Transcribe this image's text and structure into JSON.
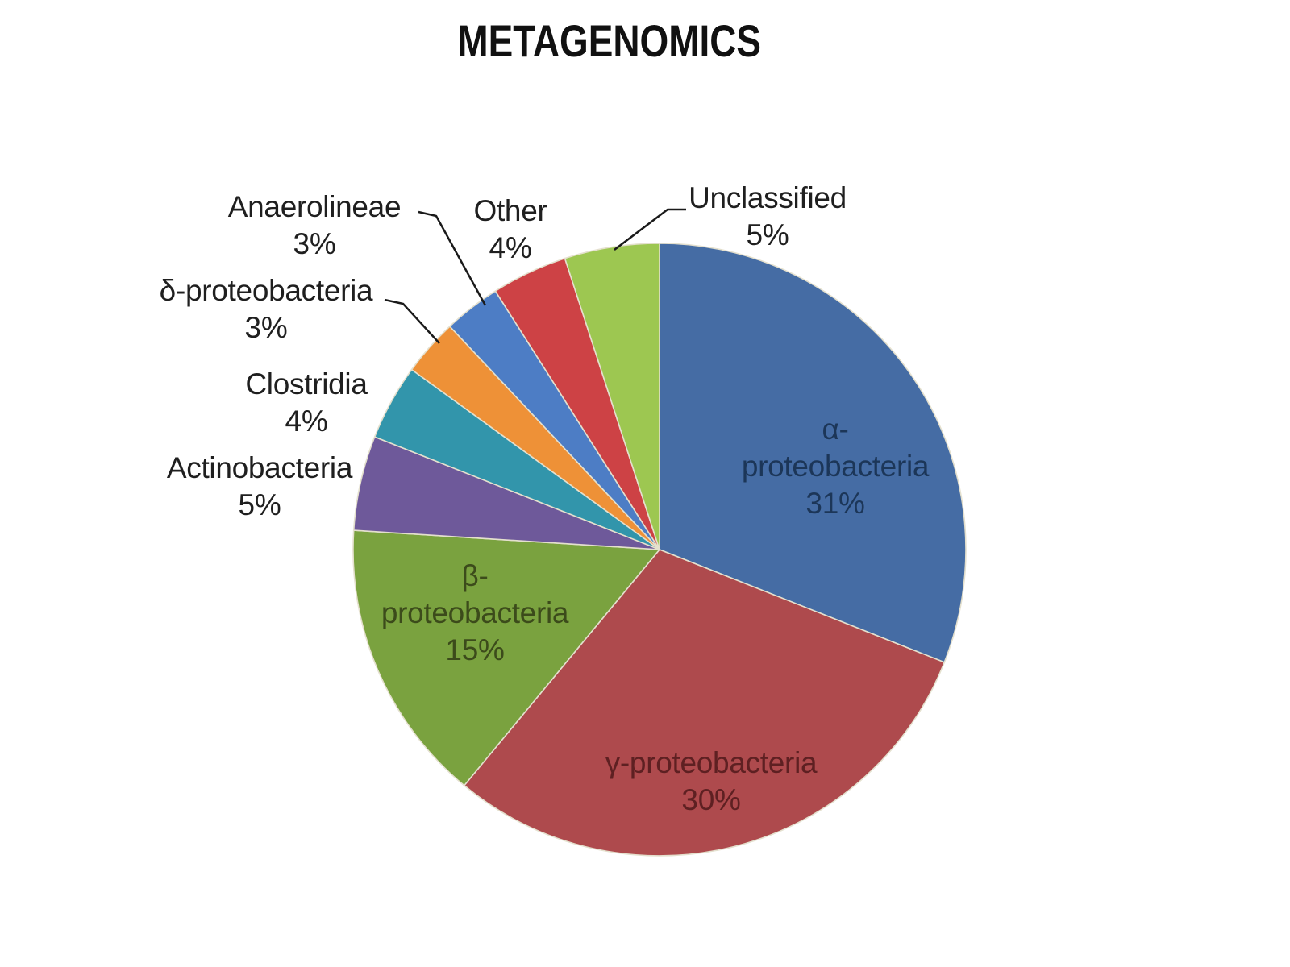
{
  "title": "METAGENOMICS",
  "chart_data": {
    "type": "pie",
    "title": "METAGENOMICS",
    "unit": "%",
    "total": 100,
    "legend": false,
    "background_color": "#FFFFFF",
    "title_color": "#111111",
    "outside_label_color": "#1F1F1F",
    "leader_line_color": "#1A1A1A",
    "slice_border_color": "#E4E0CE",
    "start_angle_deg": 0,
    "direction": "clockwise",
    "slices": [
      {
        "id": "alpha-proteobacteria",
        "name": "α-proteobacteria",
        "value": 31,
        "pct_label": "31%",
        "color": "#456CA4",
        "label_placement": "inside",
        "label_color": "#1C3658",
        "lines": [
          "α-",
          "proteobacteria",
          "31%"
        ]
      },
      {
        "id": "gamma-proteobacteria",
        "name": "γ-proteobacteria",
        "value": 30,
        "pct_label": "30%",
        "color": "#AE4A4D",
        "label_placement": "inside",
        "label_color": "#5E2022",
        "lines": [
          "γ-proteobacteria",
          "30%"
        ]
      },
      {
        "id": "beta-proteobacteria",
        "name": "β-proteobacteria",
        "value": 15,
        "pct_label": "15%",
        "color": "#7AA23F",
        "label_placement": "inside",
        "label_color": "#3C4B1B",
        "lines": [
          "β-",
          "proteobacteria",
          "15%"
        ]
      },
      {
        "id": "actinobacteria",
        "name": "Actinobacteria",
        "value": 5,
        "pct_label": "5%",
        "color": "#6E599A",
        "label_placement": "outside",
        "label_color": "#1F1F1F",
        "lines": [
          "Actinobacteria",
          "5%"
        ]
      },
      {
        "id": "clostridia",
        "name": "Clostridia",
        "value": 4,
        "pct_label": "4%",
        "color": "#3295AB",
        "label_placement": "outside",
        "label_color": "#1F1F1F",
        "lines": [
          "Clostridia",
          "4%"
        ]
      },
      {
        "id": "delta-proteobacteria",
        "name": "δ-proteobacteria",
        "value": 3,
        "pct_label": "3%",
        "color": "#EE9137",
        "label_placement": "outside",
        "label_color": "#1F1F1F",
        "lines": [
          "δ-proteobacteria",
          "3%"
        ],
        "leader_line": true
      },
      {
        "id": "anaerolineae",
        "name": "Anaerolineae",
        "value": 3,
        "pct_label": "3%",
        "color": "#4D7DC5",
        "label_placement": "outside",
        "label_color": "#1F1F1F",
        "lines": [
          "Anaerolineae",
          "3%"
        ],
        "leader_line": true
      },
      {
        "id": "other",
        "name": "Other",
        "value": 4,
        "pct_label": "4%",
        "color": "#CD4245",
        "label_placement": "outside",
        "label_color": "#1F1F1F",
        "lines": [
          "Other",
          "4%"
        ]
      },
      {
        "id": "unclassified",
        "name": "Unclassified",
        "value": 5,
        "pct_label": "5%",
        "color": "#9DC751",
        "label_placement": "outside",
        "label_color": "#1F1F1F",
        "lines": [
          "Unclassified",
          "5%"
        ],
        "leader_line": true
      }
    ]
  }
}
